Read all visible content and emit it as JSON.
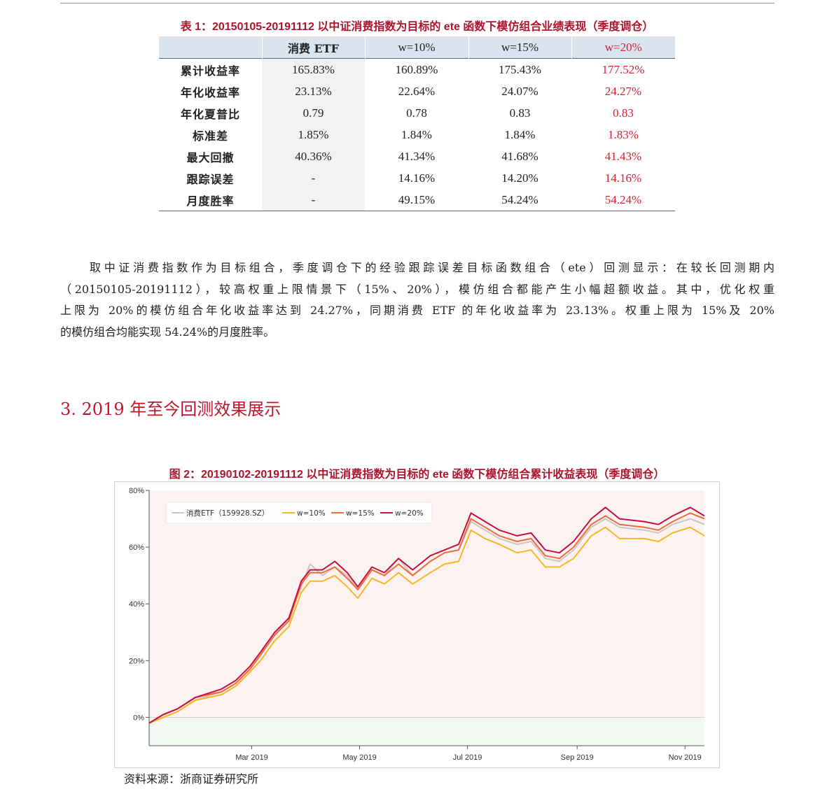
{
  "table": {
    "caption": "表 1：20150105-20191112 以中证消费指数为目标的 ete 函数下模仿组合业绩表现（季度调仓）",
    "headers": [
      "",
      "消费 ETF",
      "w=10%",
      "w=15%",
      "w=20%"
    ],
    "rows": [
      {
        "label": "累计收益率",
        "cells": [
          "165.83%",
          "160.89%",
          "175.43%",
          "177.52%"
        ]
      },
      {
        "label": "年化收益率",
        "cells": [
          "23.13%",
          "22.64%",
          "24.07%",
          "24.27%"
        ]
      },
      {
        "label": "年化夏普比",
        "cells": [
          "0.79",
          "0.78",
          "0.83",
          "0.83"
        ]
      },
      {
        "label": "标准差",
        "cells": [
          "1.85%",
          "1.84%",
          "1.84%",
          "1.83%"
        ]
      },
      {
        "label": "最大回撤",
        "cells": [
          "40.36%",
          "41.34%",
          "41.68%",
          "41.43%"
        ]
      },
      {
        "label": "跟踪误差",
        "cells": [
          "-",
          "14.16%",
          "14.20%",
          "14.16%"
        ]
      },
      {
        "label": "月度胜率",
        "cells": [
          "-",
          "49.15%",
          "54.24%",
          "54.24%"
        ]
      }
    ],
    "highlight_color": "#d9202f",
    "header_bg": "#dae4ef"
  },
  "paragraph": {
    "line1": "取中证消费指数作为目标组合，季度调仓下的经验跟踪误差目标函数组合（ete）回测显示：在较长回测期内",
    "line2": "（20150105-20191112），较高权重上限情景下（15%、20%），模仿组合都能产生小幅超额收益。其中，优化权重",
    "line3": "上限为 20%的模仿组合年化收益率达到 24.27%，同期消费 ETF 的年化收益率为 23.13%。权重上限为 15%及 20%",
    "line4": "的模仿组合均能实现 54.24%的月度胜率。"
  },
  "section": {
    "title": "3. 2019 年至今回测效果展示"
  },
  "chart": {
    "caption": "图 2：20190102-20191112 以中证消费指数为目标的 ete 函数下模仿组合累计收益表现（季度调仓）",
    "source": "资料来源：浙商证券研究所"
  },
  "chart_data": {
    "type": "line",
    "title": "图 2：20190102-20191112 以中证消费指数为目标的 ete 函数下模仿组合累计收益表现（季度调仓）",
    "xlabel": "",
    "ylabel": "",
    "ylim": [
      -0.1,
      0.8
    ],
    "yticks": [
      0,
      0.2,
      0.4,
      0.6,
      0.8
    ],
    "ytick_labels": [
      "0%",
      "20%",
      "40%",
      "60%",
      "80%"
    ],
    "xlim": [
      "2019-01-02",
      "2019-11-12"
    ],
    "xticks": [
      "2019-03-01",
      "2019-05-01",
      "2019-07-01",
      "2019-09-01",
      "2019-11-01"
    ],
    "xtick_labels": [
      "Mar 2019",
      "May 2019",
      "Jul 2019",
      "Sep 2019",
      "Nov 2019"
    ],
    "legend_position": "top-left",
    "grid": false,
    "background_bands": {
      "positive": "#fdf2f2",
      "negative": "#f1f8f1"
    },
    "x": [
      "2019-01-02",
      "2019-01-10",
      "2019-01-18",
      "2019-01-28",
      "2019-02-12",
      "2019-02-20",
      "2019-02-28",
      "2019-03-06",
      "2019-03-14",
      "2019-03-22",
      "2019-03-29",
      "2019-04-03",
      "2019-04-10",
      "2019-04-17",
      "2019-04-24",
      "2019-04-30",
      "2019-05-08",
      "2019-05-15",
      "2019-05-23",
      "2019-05-31",
      "2019-06-10",
      "2019-06-18",
      "2019-06-26",
      "2019-07-03",
      "2019-07-11",
      "2019-07-19",
      "2019-07-29",
      "2019-08-06",
      "2019-08-14",
      "2019-08-22",
      "2019-08-30",
      "2019-09-09",
      "2019-09-17",
      "2019-09-25",
      "2019-10-09",
      "2019-10-17",
      "2019-10-25",
      "2019-11-04",
      "2019-11-12"
    ],
    "series": [
      {
        "name": "消费ETF（159928.SZ）",
        "color": "#c8c8c8",
        "values": [
          -0.02,
          0.0,
          0.02,
          0.06,
          0.09,
          0.12,
          0.17,
          0.22,
          0.29,
          0.35,
          0.46,
          0.54,
          0.5,
          0.53,
          0.5,
          0.45,
          0.52,
          0.5,
          0.56,
          0.5,
          0.55,
          0.58,
          0.59,
          0.69,
          0.66,
          0.63,
          0.61,
          0.62,
          0.56,
          0.55,
          0.59,
          0.67,
          0.7,
          0.67,
          0.66,
          0.65,
          0.68,
          0.7,
          0.68
        ]
      },
      {
        "name": "w=10%",
        "color": "#f5b825",
        "values": [
          -0.02,
          0.0,
          0.02,
          0.06,
          0.08,
          0.11,
          0.16,
          0.2,
          0.27,
          0.32,
          0.44,
          0.48,
          0.48,
          0.5,
          0.46,
          0.42,
          0.49,
          0.47,
          0.51,
          0.47,
          0.51,
          0.54,
          0.55,
          0.66,
          0.63,
          0.61,
          0.58,
          0.59,
          0.53,
          0.53,
          0.56,
          0.64,
          0.67,
          0.63,
          0.63,
          0.62,
          0.65,
          0.67,
          0.64
        ]
      },
      {
        "name": "w=15%",
        "color": "#f06a3a",
        "values": [
          -0.02,
          0.01,
          0.03,
          0.07,
          0.09,
          0.12,
          0.17,
          0.22,
          0.29,
          0.34,
          0.47,
          0.51,
          0.51,
          0.53,
          0.49,
          0.45,
          0.52,
          0.5,
          0.54,
          0.5,
          0.55,
          0.58,
          0.59,
          0.7,
          0.67,
          0.64,
          0.62,
          0.63,
          0.57,
          0.56,
          0.6,
          0.68,
          0.71,
          0.68,
          0.67,
          0.66,
          0.69,
          0.72,
          0.7
        ]
      },
      {
        "name": "w=20%",
        "color": "#c4103e",
        "values": [
          -0.02,
          0.01,
          0.03,
          0.07,
          0.1,
          0.13,
          0.18,
          0.23,
          0.3,
          0.35,
          0.48,
          0.52,
          0.52,
          0.55,
          0.51,
          0.46,
          0.53,
          0.51,
          0.56,
          0.52,
          0.57,
          0.59,
          0.61,
          0.72,
          0.69,
          0.66,
          0.64,
          0.65,
          0.59,
          0.58,
          0.62,
          0.7,
          0.74,
          0.7,
          0.69,
          0.68,
          0.71,
          0.74,
          0.71
        ]
      }
    ]
  }
}
